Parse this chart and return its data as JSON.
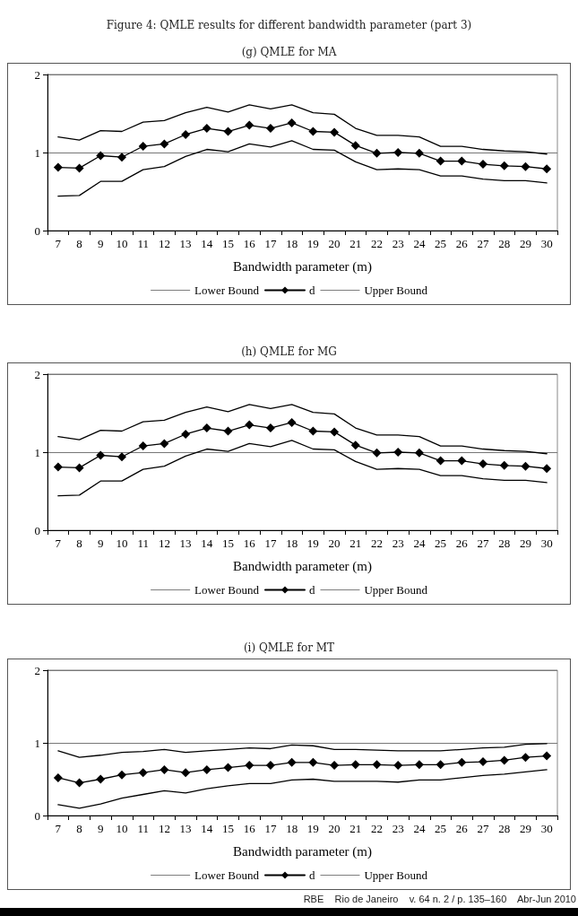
{
  "chart_data": [
    {
      "type": "line",
      "title": "Figure 4: QMLE results for different bandwidth parameter (part 3)",
      "subtitle": "(g) QMLE for MA",
      "xlabel": "Bandwidth parameter (m)",
      "categories": [
        "7",
        "8",
        "9",
        "10",
        "11",
        "12",
        "13",
        "14",
        "15",
        "16",
        "17",
        "18",
        "19",
        "20",
        "21",
        "22",
        "23",
        "24",
        "25",
        "26",
        "27",
        "28",
        "29",
        "30"
      ],
      "series": [
        {
          "name": "Lower Bound",
          "color": "#000000",
          "marker": "none",
          "values": [
            0.44,
            0.45,
            0.63,
            0.63,
            0.78,
            0.82,
            0.95,
            1.04,
            1.01,
            1.11,
            1.07,
            1.15,
            1.04,
            1.03,
            0.88,
            0.78,
            0.79,
            0.78,
            0.7,
            0.7,
            0.66,
            0.64,
            0.64,
            0.61
          ]
        },
        {
          "name": "d",
          "color": "#000000",
          "marker": "diamond",
          "values": [
            0.81,
            0.8,
            0.96,
            0.94,
            1.08,
            1.11,
            1.23,
            1.31,
            1.27,
            1.35,
            1.31,
            1.38,
            1.27,
            1.26,
            1.09,
            0.99,
            1.0,
            0.99,
            0.89,
            0.89,
            0.85,
            0.83,
            0.82,
            0.79
          ]
        },
        {
          "name": "Upper Bound",
          "color": "#000000",
          "marker": "none",
          "values": [
            1.2,
            1.16,
            1.28,
            1.27,
            1.39,
            1.41,
            1.51,
            1.58,
            1.52,
            1.61,
            1.56,
            1.61,
            1.51,
            1.49,
            1.31,
            1.22,
            1.22,
            1.2,
            1.08,
            1.08,
            1.04,
            1.02,
            1.01,
            0.98
          ]
        }
      ],
      "ylim": [
        0,
        2
      ],
      "yticks": [
        0,
        1,
        2
      ],
      "grid": "y",
      "legend": "bottom",
      "line_style": "solid"
    },
    {
      "type": "line",
      "subtitle": "(h) QMLE for MG",
      "xlabel": "Bandwidth parameter (m)",
      "categories": [
        "7",
        "8",
        "9",
        "10",
        "11",
        "12",
        "13",
        "14",
        "15",
        "16",
        "17",
        "18",
        "19",
        "20",
        "21",
        "22",
        "23",
        "24",
        "25",
        "26",
        "27",
        "28",
        "29",
        "30"
      ],
      "series": [
        {
          "name": "Lower Bound",
          "color": "#000000",
          "marker": "none",
          "values": [
            0.44,
            0.45,
            0.63,
            0.63,
            0.78,
            0.82,
            0.95,
            1.04,
            1.01,
            1.11,
            1.07,
            1.15,
            1.04,
            1.03,
            0.88,
            0.78,
            0.79,
            0.78,
            0.7,
            0.7,
            0.66,
            0.64,
            0.64,
            0.61
          ]
        },
        {
          "name": "d",
          "color": "#000000",
          "marker": "diamond",
          "values": [
            0.81,
            0.8,
            0.96,
            0.94,
            1.08,
            1.11,
            1.23,
            1.31,
            1.27,
            1.35,
            1.31,
            1.38,
            1.27,
            1.26,
            1.09,
            0.99,
            1.0,
            0.99,
            0.89,
            0.89,
            0.85,
            0.83,
            0.82,
            0.79
          ]
        },
        {
          "name": "Upper Bound",
          "color": "#000000",
          "marker": "none",
          "values": [
            1.2,
            1.16,
            1.28,
            1.27,
            1.39,
            1.41,
            1.51,
            1.58,
            1.52,
            1.61,
            1.56,
            1.61,
            1.51,
            1.49,
            1.31,
            1.22,
            1.22,
            1.2,
            1.08,
            1.08,
            1.04,
            1.02,
            1.01,
            0.98
          ]
        }
      ],
      "ylim": [
        0,
        2
      ],
      "yticks": [
        0,
        1,
        2
      ],
      "grid": "y",
      "legend": "bottom",
      "line_style": "solid"
    },
    {
      "type": "line",
      "subtitle": "(i) QMLE for MT",
      "xlabel": "Bandwidth parameter (m)",
      "categories": [
        "7",
        "8",
        "9",
        "10",
        "11",
        "12",
        "13",
        "14",
        "15",
        "16",
        "17",
        "18",
        "19",
        "20",
        "21",
        "22",
        "23",
        "24",
        "25",
        "26",
        "27",
        "28",
        "29",
        "30"
      ],
      "series": [
        {
          "name": "Lower Bound",
          "color": "#000000",
          "marker": "none",
          "values": [
            0.15,
            0.1,
            0.16,
            0.24,
            0.29,
            0.34,
            0.31,
            0.37,
            0.41,
            0.44,
            0.44,
            0.49,
            0.5,
            0.47,
            0.47,
            0.47,
            0.46,
            0.49,
            0.49,
            0.52,
            0.55,
            0.57,
            0.6,
            0.63
          ]
        },
        {
          "name": "d",
          "color": "#000000",
          "marker": "diamond",
          "values": [
            0.52,
            0.45,
            0.5,
            0.56,
            0.59,
            0.63,
            0.59,
            0.63,
            0.66,
            0.69,
            0.69,
            0.73,
            0.73,
            0.69,
            0.7,
            0.7,
            0.69,
            0.7,
            0.7,
            0.73,
            0.74,
            0.76,
            0.8,
            0.82
          ]
        },
        {
          "name": "Upper Bound",
          "color": "#000000",
          "marker": "none",
          "values": [
            0.89,
            0.8,
            0.83,
            0.87,
            0.88,
            0.91,
            0.87,
            0.89,
            0.91,
            0.93,
            0.92,
            0.97,
            0.96,
            0.91,
            0.91,
            0.9,
            0.89,
            0.89,
            0.89,
            0.91,
            0.93,
            0.94,
            0.98,
            0.99
          ]
        }
      ],
      "ylim": [
        0,
        2
      ],
      "yticks": [
        0,
        1,
        2
      ],
      "grid": "y",
      "legend": "bottom",
      "line_style": "solid",
      "annotations": [
        "RBE    Rio de Janeiro    v. 64 n. 2 / p. 135–160    Abr-Jun 2010"
      ]
    }
  ]
}
